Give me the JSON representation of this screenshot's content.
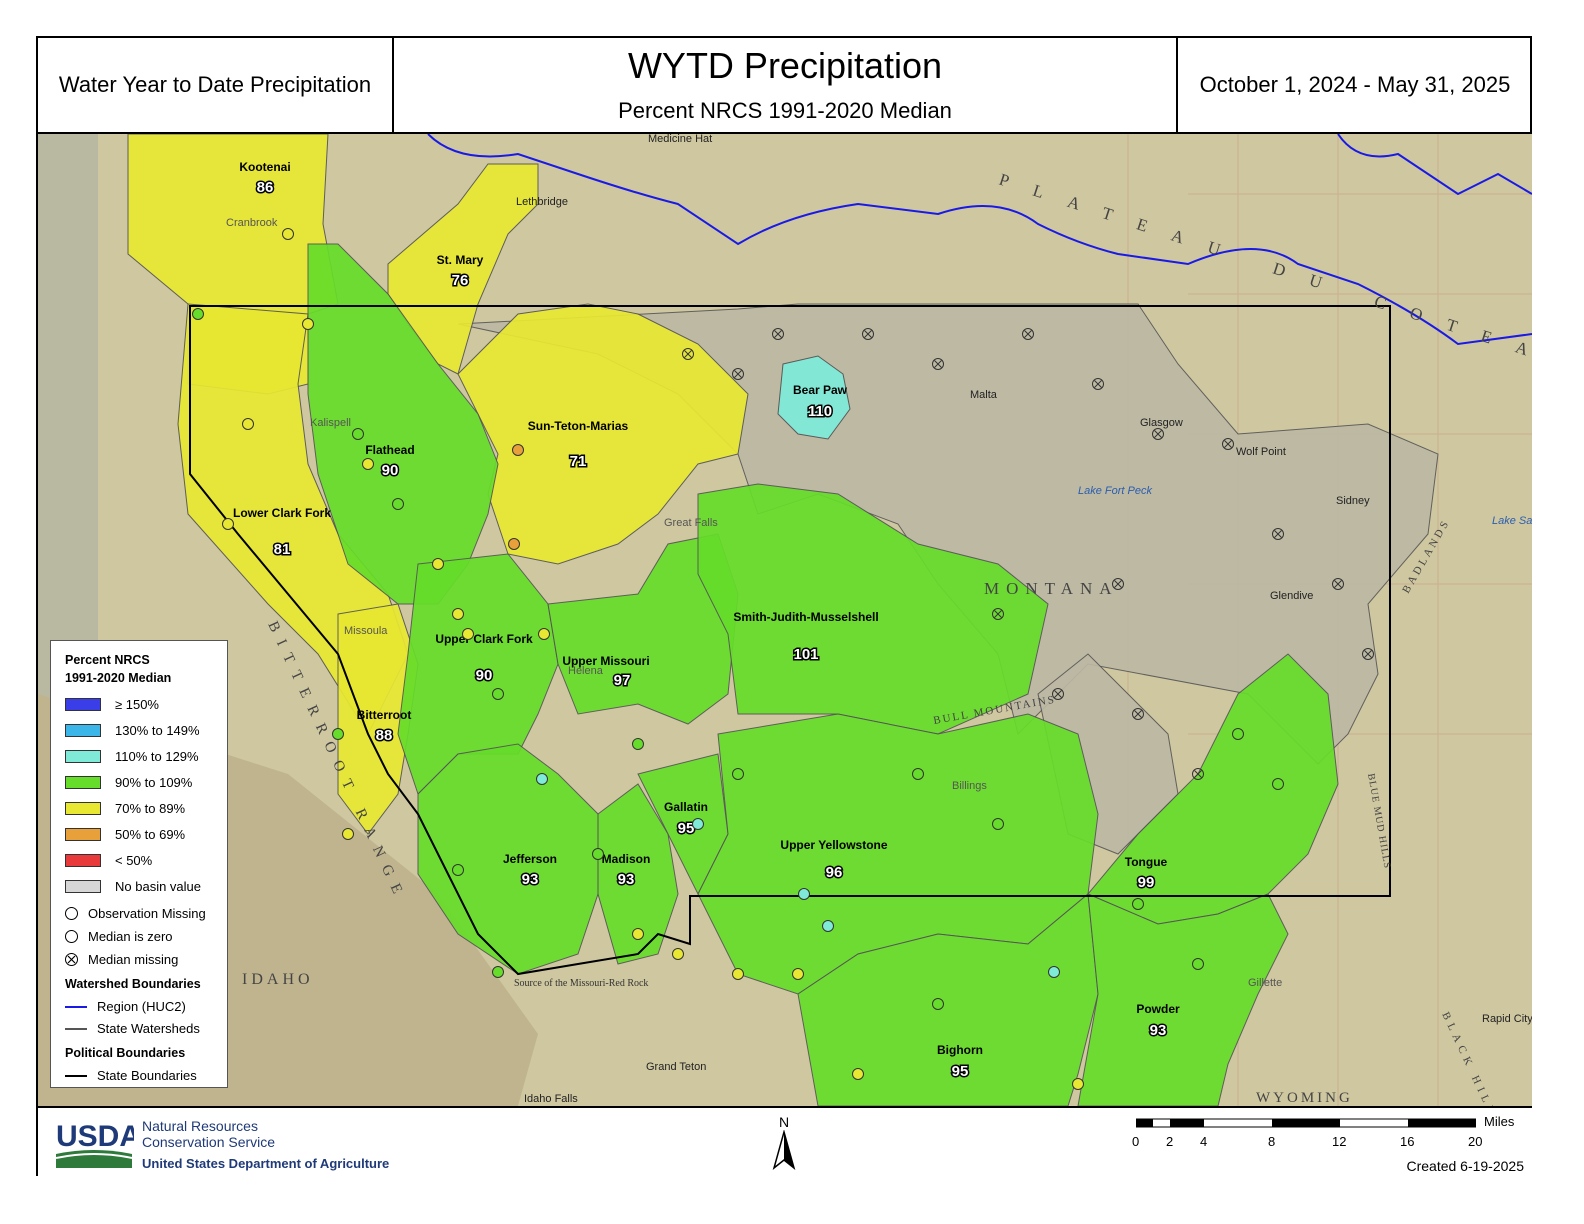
{
  "header": {
    "left_text": "Water Year to Date Precipitation",
    "title": "WYTD Precipitation",
    "subtitle": "Percent NRCS 1991-2020 Median",
    "date_range": "October 1, 2024 - May 31, 2025"
  },
  "colors": {
    "ge150": "#3a3ee8",
    "p130_149": "#3cb6e8",
    "p110_129": "#7fead8",
    "p90_109": "#66dd2a",
    "p70_89": "#e8e832",
    "p50_69": "#e8a03a",
    "lt50": "#e83a3a",
    "no_value": "#c8c8c8",
    "region_line": "#1a1ae6",
    "state_line": "#000000"
  },
  "basins": [
    {
      "name": "Kootenai",
      "value": "86",
      "category": "p70_89"
    },
    {
      "name": "St. Mary",
      "value": "76",
      "category": "p70_89"
    },
    {
      "name": "Flathead",
      "value": "90",
      "category": "p90_109"
    },
    {
      "name": "Sun-Teton-Marias",
      "value": "71",
      "category": "p70_89"
    },
    {
      "name": "Bear Paw",
      "value": "110",
      "category": "p110_129"
    },
    {
      "name": "Lower Clark Fork",
      "value": "81",
      "category": "p70_89"
    },
    {
      "name": "Upper Clark Fork",
      "value": "90",
      "category": "p90_109"
    },
    {
      "name": "Upper Missouri",
      "value": "97",
      "category": "p90_109"
    },
    {
      "name": "Smith-Judith-Musselshell",
      "value": "101",
      "category": "p90_109"
    },
    {
      "name": "Bitterroot",
      "value": "88",
      "category": "p70_89"
    },
    {
      "name": "Jefferson",
      "value": "93",
      "category": "p90_109"
    },
    {
      "name": "Madison",
      "value": "93",
      "category": "p90_109"
    },
    {
      "name": "Gallatin",
      "value": "95",
      "category": "p90_109"
    },
    {
      "name": "Upper Yellowstone",
      "value": "96",
      "category": "p90_109"
    },
    {
      "name": "Tongue",
      "value": "99",
      "category": "p90_109"
    },
    {
      "name": "Powder",
      "value": "93",
      "category": "p90_109"
    },
    {
      "name": "Bighorn",
      "value": "95",
      "category": "p90_109"
    }
  ],
  "places": [
    "Medicine Hat",
    "Lethbridge",
    "Cranbrook",
    "Malta",
    "Glasgow",
    "Wolf Point",
    "Sidney",
    "Glendive",
    "Billings",
    "Great Falls",
    "Helena",
    "Missoula",
    "Kalispell",
    "Grand Teton",
    "Idaho Falls",
    "Gillette",
    "Rapid City",
    "Lake Fort Peck",
    "Lake Sakakawea"
  ],
  "map_labels": [
    "PLATEAU DU COTEAU",
    "MONTANA",
    "IDAHO",
    "WYOMING",
    "BITTERROOT RANGE",
    "BULL MOUNTAINS",
    "BADLANDS",
    "BLACK HILLS",
    "BLUE MUD HILLS",
    "Source of the Missouri-Red Rock"
  ],
  "legend": {
    "title_line1": "Percent NRCS",
    "title_line2": "1991-2020 Median",
    "classes": [
      {
        "label": "≥ 150%",
        "color": "#3a3ee8"
      },
      {
        "label": "130% to 149%",
        "color": "#3cb6e8"
      },
      {
        "label": "110% to 129%",
        "color": "#7fead8"
      },
      {
        "label": "90% to 109%",
        "color": "#66dd2a"
      },
      {
        "label": "70% to 89%",
        "color": "#e8e832"
      },
      {
        "label": "50% to 69%",
        "color": "#e8a03a"
      },
      {
        "label": "< 50%",
        "color": "#e83a3a"
      },
      {
        "label": "No basin value",
        "color": "#d6d6d6"
      }
    ],
    "symbols": {
      "obs_missing": "Observation Missing",
      "median_zero": "Median is zero",
      "median_missing": "Median missing"
    },
    "watershed_title": "Watershed Boundaries",
    "region": "Region (HUC2)",
    "state_watersheds": "State Watersheds",
    "political_title": "Political Boundaries",
    "state_boundaries": "State Boundaries"
  },
  "footer": {
    "usda": "USDA",
    "agency_line1": "Natural Resources",
    "agency_line2": "Conservation Service",
    "department": "United States Department of Agriculture",
    "north": "N",
    "scale_unit": "Miles",
    "scale_ticks": [
      "0",
      "2",
      "4",
      "8",
      "12",
      "16",
      "20"
    ],
    "created": "Created 6-19-2025"
  }
}
